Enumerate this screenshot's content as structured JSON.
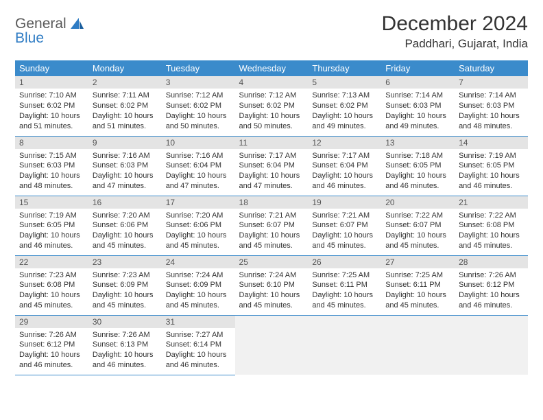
{
  "brand": {
    "line1": "General",
    "line2": "Blue"
  },
  "title": "December 2024",
  "location": "Paddhari, Gujarat, India",
  "colors": {
    "header_bg": "#3b8bcb",
    "header_text": "#ffffff",
    "daynum_bg": "#e4e4e4",
    "empty_bg": "#f1f1f1",
    "row_divider": "#3b8bcb",
    "brand_gray": "#5a5a5a",
    "brand_blue": "#2f7cc4"
  },
  "typography": {
    "title_fontsize": 30,
    "location_fontsize": 17,
    "header_fontsize": 13,
    "daynum_fontsize": 12,
    "body_fontsize": 11
  },
  "weekday_labels": [
    "Sunday",
    "Monday",
    "Tuesday",
    "Wednesday",
    "Thursday",
    "Friday",
    "Saturday"
  ],
  "rows": [
    [
      {
        "day": "1",
        "sunrise": "Sunrise: 7:10 AM",
        "sunset": "Sunset: 6:02 PM",
        "daylight": "Daylight: 10 hours and 51 minutes."
      },
      {
        "day": "2",
        "sunrise": "Sunrise: 7:11 AM",
        "sunset": "Sunset: 6:02 PM",
        "daylight": "Daylight: 10 hours and 51 minutes."
      },
      {
        "day": "3",
        "sunrise": "Sunrise: 7:12 AM",
        "sunset": "Sunset: 6:02 PM",
        "daylight": "Daylight: 10 hours and 50 minutes."
      },
      {
        "day": "4",
        "sunrise": "Sunrise: 7:12 AM",
        "sunset": "Sunset: 6:02 PM",
        "daylight": "Daylight: 10 hours and 50 minutes."
      },
      {
        "day": "5",
        "sunrise": "Sunrise: 7:13 AM",
        "sunset": "Sunset: 6:02 PM",
        "daylight": "Daylight: 10 hours and 49 minutes."
      },
      {
        "day": "6",
        "sunrise": "Sunrise: 7:14 AM",
        "sunset": "Sunset: 6:03 PM",
        "daylight": "Daylight: 10 hours and 49 minutes."
      },
      {
        "day": "7",
        "sunrise": "Sunrise: 7:14 AM",
        "sunset": "Sunset: 6:03 PM",
        "daylight": "Daylight: 10 hours and 48 minutes."
      }
    ],
    [
      {
        "day": "8",
        "sunrise": "Sunrise: 7:15 AM",
        "sunset": "Sunset: 6:03 PM",
        "daylight": "Daylight: 10 hours and 48 minutes."
      },
      {
        "day": "9",
        "sunrise": "Sunrise: 7:16 AM",
        "sunset": "Sunset: 6:03 PM",
        "daylight": "Daylight: 10 hours and 47 minutes."
      },
      {
        "day": "10",
        "sunrise": "Sunrise: 7:16 AM",
        "sunset": "Sunset: 6:04 PM",
        "daylight": "Daylight: 10 hours and 47 minutes."
      },
      {
        "day": "11",
        "sunrise": "Sunrise: 7:17 AM",
        "sunset": "Sunset: 6:04 PM",
        "daylight": "Daylight: 10 hours and 47 minutes."
      },
      {
        "day": "12",
        "sunrise": "Sunrise: 7:17 AM",
        "sunset": "Sunset: 6:04 PM",
        "daylight": "Daylight: 10 hours and 46 minutes."
      },
      {
        "day": "13",
        "sunrise": "Sunrise: 7:18 AM",
        "sunset": "Sunset: 6:05 PM",
        "daylight": "Daylight: 10 hours and 46 minutes."
      },
      {
        "day": "14",
        "sunrise": "Sunrise: 7:19 AM",
        "sunset": "Sunset: 6:05 PM",
        "daylight": "Daylight: 10 hours and 46 minutes."
      }
    ],
    [
      {
        "day": "15",
        "sunrise": "Sunrise: 7:19 AM",
        "sunset": "Sunset: 6:05 PM",
        "daylight": "Daylight: 10 hours and 46 minutes."
      },
      {
        "day": "16",
        "sunrise": "Sunrise: 7:20 AM",
        "sunset": "Sunset: 6:06 PM",
        "daylight": "Daylight: 10 hours and 45 minutes."
      },
      {
        "day": "17",
        "sunrise": "Sunrise: 7:20 AM",
        "sunset": "Sunset: 6:06 PM",
        "daylight": "Daylight: 10 hours and 45 minutes."
      },
      {
        "day": "18",
        "sunrise": "Sunrise: 7:21 AM",
        "sunset": "Sunset: 6:07 PM",
        "daylight": "Daylight: 10 hours and 45 minutes."
      },
      {
        "day": "19",
        "sunrise": "Sunrise: 7:21 AM",
        "sunset": "Sunset: 6:07 PM",
        "daylight": "Daylight: 10 hours and 45 minutes."
      },
      {
        "day": "20",
        "sunrise": "Sunrise: 7:22 AM",
        "sunset": "Sunset: 6:07 PM",
        "daylight": "Daylight: 10 hours and 45 minutes."
      },
      {
        "day": "21",
        "sunrise": "Sunrise: 7:22 AM",
        "sunset": "Sunset: 6:08 PM",
        "daylight": "Daylight: 10 hours and 45 minutes."
      }
    ],
    [
      {
        "day": "22",
        "sunrise": "Sunrise: 7:23 AM",
        "sunset": "Sunset: 6:08 PM",
        "daylight": "Daylight: 10 hours and 45 minutes."
      },
      {
        "day": "23",
        "sunrise": "Sunrise: 7:23 AM",
        "sunset": "Sunset: 6:09 PM",
        "daylight": "Daylight: 10 hours and 45 minutes."
      },
      {
        "day": "24",
        "sunrise": "Sunrise: 7:24 AM",
        "sunset": "Sunset: 6:09 PM",
        "daylight": "Daylight: 10 hours and 45 minutes."
      },
      {
        "day": "25",
        "sunrise": "Sunrise: 7:24 AM",
        "sunset": "Sunset: 6:10 PM",
        "daylight": "Daylight: 10 hours and 45 minutes."
      },
      {
        "day": "26",
        "sunrise": "Sunrise: 7:25 AM",
        "sunset": "Sunset: 6:11 PM",
        "daylight": "Daylight: 10 hours and 45 minutes."
      },
      {
        "day": "27",
        "sunrise": "Sunrise: 7:25 AM",
        "sunset": "Sunset: 6:11 PM",
        "daylight": "Daylight: 10 hours and 45 minutes."
      },
      {
        "day": "28",
        "sunrise": "Sunrise: 7:26 AM",
        "sunset": "Sunset: 6:12 PM",
        "daylight": "Daylight: 10 hours and 46 minutes."
      }
    ],
    [
      {
        "day": "29",
        "sunrise": "Sunrise: 7:26 AM",
        "sunset": "Sunset: 6:12 PM",
        "daylight": "Daylight: 10 hours and 46 minutes."
      },
      {
        "day": "30",
        "sunrise": "Sunrise: 7:26 AM",
        "sunset": "Sunset: 6:13 PM",
        "daylight": "Daylight: 10 hours and 46 minutes."
      },
      {
        "day": "31",
        "sunrise": "Sunrise: 7:27 AM",
        "sunset": "Sunset: 6:14 PM",
        "daylight": "Daylight: 10 hours and 46 minutes."
      },
      null,
      null,
      null,
      null
    ]
  ]
}
